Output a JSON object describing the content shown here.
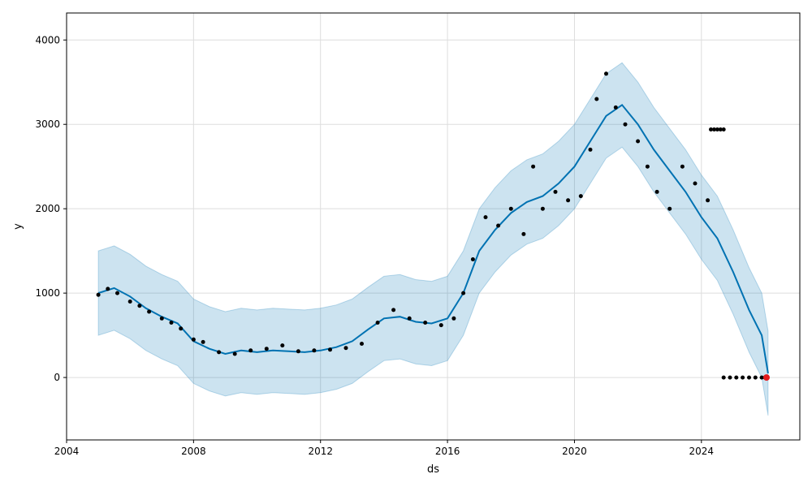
{
  "chart_data": {
    "type": "line",
    "xlabel": "ds",
    "ylabel": "y",
    "xlim": [
      2004.0,
      2027.1
    ],
    "ylim": [
      -740,
      4320
    ],
    "x_ticks": [
      2004,
      2008,
      2012,
      2016,
      2020,
      2024
    ],
    "x_tick_labels": [
      "2004",
      "2008",
      "2012",
      "2016",
      "2020",
      "2024"
    ],
    "y_ticks": [
      0,
      1000,
      2000,
      3000,
      4000
    ],
    "y_tick_labels": [
      "0",
      "1000",
      "2000",
      "3000",
      "4000"
    ],
    "grid": true,
    "colors": {
      "forecast_line": "#0072b2",
      "interval_fill": "#0072b2",
      "observed": "#000000",
      "highlight": "#e31a1c"
    },
    "series": [
      {
        "kind": "forecast",
        "x": [
          2005.0,
          2005.5,
          2006.0,
          2006.5,
          2007.0,
          2007.5,
          2008.0,
          2008.5,
          2009.0,
          2009.5,
          2010.0,
          2010.5,
          2011.0,
          2011.5,
          2012.0,
          2012.5,
          2013.0,
          2013.5,
          2014.0,
          2014.5,
          2015.0,
          2015.5,
          2016.0,
          2016.5,
          2017.0,
          2017.5,
          2018.0,
          2018.5,
          2019.0,
          2019.5,
          2020.0,
          2020.5,
          2021.0,
          2021.5,
          2022.0,
          2022.5,
          2023.0,
          2023.5,
          2024.0,
          2024.5,
          2025.0,
          2025.5,
          2025.9,
          2026.1
        ],
        "yhat": [
          1000,
          1060,
          960,
          820,
          720,
          640,
          430,
          340,
          280,
          320,
          300,
          320,
          310,
          300,
          320,
          360,
          430,
          570,
          700,
          720,
          660,
          640,
          700,
          1000,
          1500,
          1750,
          1950,
          2080,
          2150,
          2300,
          2500,
          2800,
          3100,
          3230,
          3000,
          2700,
          2450,
          2200,
          1900,
          1650,
          1250,
          800,
          500,
          50
        ],
        "lower": [
          500,
          560,
          460,
          320,
          220,
          140,
          -70,
          -160,
          -220,
          -180,
          -200,
          -180,
          -190,
          -200,
          -180,
          -140,
          -70,
          70,
          200,
          220,
          160,
          140,
          200,
          500,
          1000,
          1250,
          1450,
          1580,
          1650,
          1800,
          2000,
          2300,
          2600,
          2730,
          2500,
          2200,
          1950,
          1700,
          1400,
          1150,
          750,
          300,
          0,
          -450
        ],
        "upper": [
          1500,
          1560,
          1460,
          1320,
          1220,
          1140,
          930,
          840,
          780,
          820,
          800,
          820,
          810,
          800,
          820,
          860,
          930,
          1070,
          1200,
          1220,
          1160,
          1140,
          1200,
          1500,
          2000,
          2250,
          2450,
          2580,
          2650,
          2800,
          3000,
          3300,
          3600,
          3730,
          3500,
          3200,
          2950,
          2700,
          2400,
          2150,
          1750,
          1300,
          1000,
          550
        ]
      },
      {
        "kind": "observed",
        "x": [
          2005.0,
          2005.3,
          2005.6,
          2006.0,
          2006.3,
          2006.6,
          2007.0,
          2007.3,
          2007.6,
          2008.0,
          2008.3,
          2008.8,
          2009.3,
          2009.8,
          2010.3,
          2010.8,
          2011.3,
          2011.8,
          2012.3,
          2012.8,
          2013.3,
          2013.8,
          2014.3,
          2014.8,
          2015.3,
          2015.8,
          2016.2,
          2016.5,
          2016.8,
          2017.2,
          2017.6,
          2018.0,
          2018.4,
          2018.7,
          2019.0,
          2019.4,
          2019.8,
          2020.2,
          2020.5,
          2020.7,
          2021.0,
          2021.3,
          2021.6,
          2022.0,
          2022.3,
          2022.6,
          2023.0,
          2023.4,
          2023.8,
          2024.2
        ],
        "y": [
          980,
          1050,
          1000,
          900,
          850,
          780,
          700,
          650,
          580,
          450,
          420,
          300,
          280,
          320,
          340,
          380,
          310,
          320,
          330,
          350,
          400,
          650,
          800,
          700,
          650,
          620,
          700,
          1000,
          1400,
          1900,
          1800,
          2000,
          1700,
          2500,
          2000,
          2200,
          2100,
          2150,
          2700,
          3300,
          3600,
          3200,
          3000,
          2800,
          2500,
          2200,
          2000,
          2500,
          2300,
          2100
        ]
      },
      {
        "kind": "observed_flat_upper",
        "x": [
          2024.3,
          2024.4,
          2024.5,
          2024.6,
          2024.7
        ],
        "y": [
          2940,
          2940,
          2940,
          2940,
          2940
        ]
      },
      {
        "kind": "observed_flat_zero",
        "x": [
          2024.7,
          2024.9,
          2025.1,
          2025.3,
          2025.5,
          2025.7,
          2025.9,
          2026.0
        ],
        "y": [
          0,
          0,
          0,
          0,
          0,
          0,
          0,
          0
        ]
      },
      {
        "kind": "highlight",
        "x": [
          2026.05
        ],
        "y": [
          0
        ]
      }
    ]
  }
}
